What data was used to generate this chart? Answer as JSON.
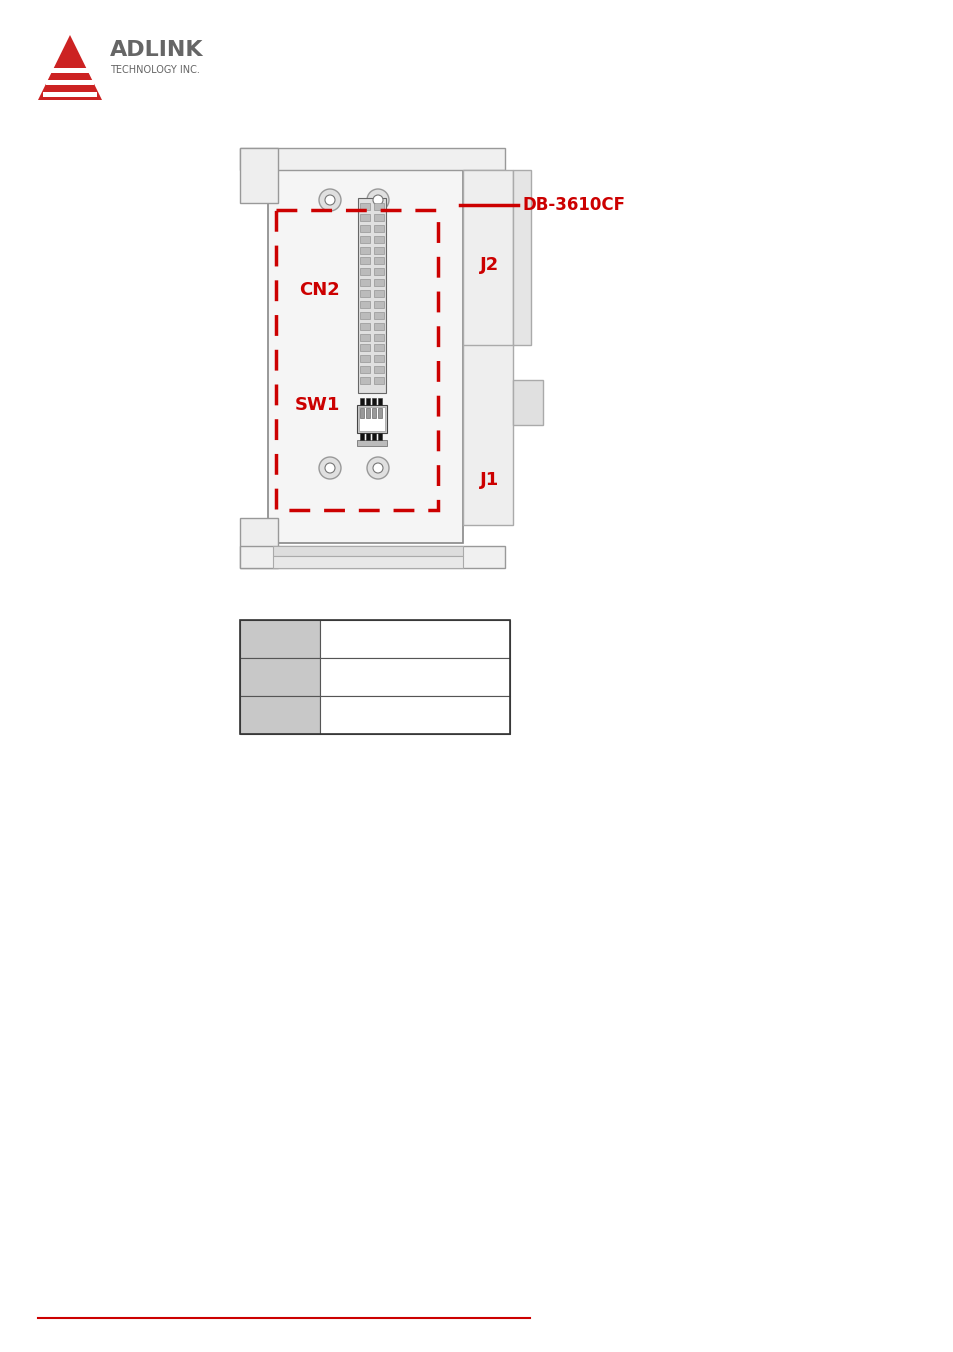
{
  "bg_color": "#ffffff",
  "red_color": "#cc0000",
  "gray_color": "#808080",
  "dark_color": "#333333",
  "light_gray": "#d3d3d3",
  "j2_label": "J2",
  "j1_label": "J1",
  "cn2_label": "CN2",
  "sw1_label": "SW1",
  "db_label": "DB-3610CF",
  "adlink_red": "#cc2222",
  "adlink_gray": "#666666"
}
